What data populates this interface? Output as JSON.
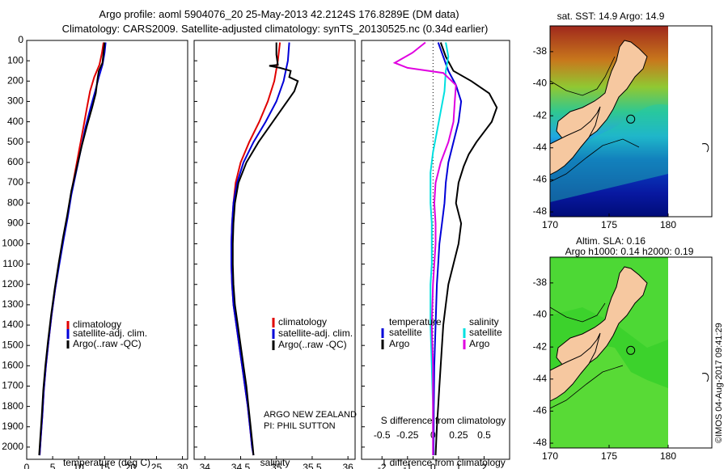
{
  "header": {
    "line1": "Argo profile: aoml 5904076_20 25-May-2013 42.2124S 176.8289E (DM data)",
    "line2": "Climatology: CARS2009. Satellite-adjusted climatology: synTS_20130525.nc (0.34d earlier)"
  },
  "colors": {
    "climatology": "#e00000",
    "satellite": "#0000d8",
    "argo": "#000000",
    "salinity_sat": "#00e0e0",
    "salinity_argo": "#e000e0",
    "land": "#f6c8a0"
  },
  "chart_data": [
    {
      "type": "line",
      "id": "temperature",
      "xlabel": "temperature (deg C)",
      "xlim": [
        0,
        31
      ],
      "xticks": [
        0,
        5,
        10,
        15,
        20,
        25,
        30
      ],
      "ylim": [
        2060,
        0
      ],
      "yticks": [
        0,
        100,
        200,
        300,
        400,
        500,
        600,
        700,
        800,
        900,
        1000,
        1100,
        1200,
        1300,
        1400,
        1500,
        1600,
        1700,
        1800,
        1900,
        2000
      ],
      "legend": [
        "climatology",
        "satellite-adj. clim.",
        "Argo(..raw -QC)"
      ],
      "series": [
        {
          "name": "climatology",
          "points": [
            [
              14.8,
              10
            ],
            [
              14.5,
              60
            ],
            [
              14.0,
              120
            ],
            [
              13.0,
              180
            ],
            [
              12.2,
              250
            ],
            [
              11.6,
              330
            ],
            [
              10.9,
              430
            ],
            [
              10.1,
              540
            ],
            [
              9.3,
              650
            ],
            [
              8.5,
              760
            ],
            [
              7.8,
              870
            ],
            [
              7.0,
              980
            ],
            [
              6.2,
              1100
            ],
            [
              5.5,
              1220
            ],
            [
              4.8,
              1350
            ],
            [
              4.2,
              1480
            ],
            [
              3.7,
              1600
            ],
            [
              3.3,
              1720
            ],
            [
              3.0,
              1850
            ],
            [
              2.7,
              1960
            ],
            [
              2.5,
              2040
            ]
          ]
        },
        {
          "name": "satellite-adj. clim.",
          "points": [
            [
              15.2,
              10
            ],
            [
              15.0,
              60
            ],
            [
              14.6,
              120
            ],
            [
              13.9,
              180
            ],
            [
              13.2,
              250
            ],
            [
              12.3,
              330
            ],
            [
              11.3,
              430
            ],
            [
              10.4,
              540
            ],
            [
              9.5,
              650
            ],
            [
              8.6,
              760
            ],
            [
              7.9,
              870
            ],
            [
              7.1,
              980
            ],
            [
              6.3,
              1100
            ],
            [
              5.5,
              1220
            ],
            [
              4.8,
              1350
            ],
            [
              4.2,
              1480
            ],
            [
              3.7,
              1600
            ],
            [
              3.3,
              1720
            ],
            [
              3.0,
              1850
            ],
            [
              2.7,
              1960
            ],
            [
              2.5,
              2040
            ]
          ]
        },
        {
          "name": "Argo(..raw -QC)",
          "points": [
            [
              15.0,
              10
            ],
            [
              14.8,
              60
            ],
            [
              14.6,
              110
            ],
            [
              13.9,
              150
            ],
            [
              13.7,
              180
            ],
            [
              13.3,
              260
            ],
            [
              12.6,
              330
            ],
            [
              11.6,
              420
            ],
            [
              10.6,
              520
            ],
            [
              9.6,
              630
            ],
            [
              8.6,
              740
            ],
            [
              7.8,
              860
            ],
            [
              7.0,
              970
            ],
            [
              6.2,
              1090
            ],
            [
              5.4,
              1220
            ],
            [
              4.7,
              1350
            ],
            [
              4.1,
              1480
            ],
            [
              3.6,
              1600
            ],
            [
              3.2,
              1720
            ],
            [
              2.9,
              1850
            ],
            [
              2.6,
              1960
            ],
            [
              2.4,
              2040
            ]
          ]
        }
      ]
    },
    {
      "type": "line",
      "id": "salinity",
      "xlabel": "salinity",
      "xlim": [
        33.85,
        36.1
      ],
      "xticks": [
        34,
        34.5,
        35,
        35.5,
        36
      ],
      "ylim": [
        2060,
        0
      ],
      "legend": [
        "climatology",
        "satellite-adj. clim.",
        "Argo(..raw -QC)"
      ],
      "annotation": [
        "ARGO NEW ZEALAND",
        "PI: PHIL SUTTON"
      ],
      "series": [
        {
          "name": "climatology",
          "points": [
            [
              35.05,
              10
            ],
            [
              35.02,
              100
            ],
            [
              34.97,
              200
            ],
            [
              34.88,
              300
            ],
            [
              34.76,
              400
            ],
            [
              34.62,
              500
            ],
            [
              34.5,
              600
            ],
            [
              34.43,
              700
            ],
            [
              34.4,
              800
            ],
            [
              34.38,
              900
            ],
            [
              34.37,
              1000
            ],
            [
              34.37,
              1100
            ],
            [
              34.38,
              1200
            ],
            [
              34.4,
              1300
            ],
            [
              34.44,
              1400
            ],
            [
              34.48,
              1500
            ],
            [
              34.52,
              1600
            ],
            [
              34.56,
              1700
            ],
            [
              34.6,
              1800
            ],
            [
              34.63,
              1900
            ],
            [
              34.66,
              2000
            ],
            [
              34.68,
              2040
            ]
          ]
        },
        {
          "name": "satellite-adj. clim.",
          "points": [
            [
              35.18,
              10
            ],
            [
              35.16,
              100
            ],
            [
              35.1,
              200
            ],
            [
              35.0,
              300
            ],
            [
              34.85,
              400
            ],
            [
              34.68,
              500
            ],
            [
              34.54,
              600
            ],
            [
              34.45,
              700
            ],
            [
              34.4,
              800
            ],
            [
              34.38,
              900
            ],
            [
              34.37,
              1000
            ],
            [
              34.37,
              1100
            ],
            [
              34.38,
              1200
            ],
            [
              34.4,
              1300
            ],
            [
              34.44,
              1400
            ],
            [
              34.48,
              1500
            ],
            [
              34.52,
              1600
            ],
            [
              34.56,
              1700
            ],
            [
              34.6,
              1800
            ],
            [
              34.63,
              1900
            ],
            [
              34.66,
              2000
            ],
            [
              34.68,
              2040
            ]
          ]
        },
        {
          "name": "Argo(..raw -QC)",
          "points": [
            [
              35.0,
              10
            ],
            [
              35.0,
              70
            ],
            [
              35.02,
              120
            ],
            [
              34.9,
              125
            ],
            [
              35.05,
              135
            ],
            [
              35.2,
              150
            ],
            [
              35.18,
              180
            ],
            [
              35.3,
              200
            ],
            [
              35.25,
              250
            ],
            [
              35.15,
              300
            ],
            [
              34.95,
              400
            ],
            [
              34.75,
              500
            ],
            [
              34.58,
              600
            ],
            [
              34.47,
              700
            ],
            [
              34.42,
              800
            ],
            [
              34.4,
              900
            ],
            [
              34.39,
              1000
            ],
            [
              34.39,
              1100
            ],
            [
              34.4,
              1200
            ],
            [
              34.42,
              1300
            ],
            [
              34.46,
              1400
            ],
            [
              34.5,
              1500
            ],
            [
              34.54,
              1600
            ],
            [
              34.58,
              1700
            ],
            [
              34.61,
              1800
            ],
            [
              34.64,
              1900
            ],
            [
              34.67,
              2000
            ],
            [
              34.68,
              2040
            ]
          ]
        }
      ]
    },
    {
      "type": "line",
      "id": "difference",
      "xlabel": "T difference from climatology",
      "xlabel_top": "S difference from climatology",
      "xlim": [
        -2.8,
        3.0
      ],
      "xticks": [
        -2,
        -1,
        0,
        1,
        2
      ],
      "xticks_s": [
        "-0.5",
        "-0.25",
        "0",
        "0.25",
        "0.5"
      ],
      "ylim": [
        2060,
        0
      ],
      "legend_t": {
        "title": "temperature",
        "items": [
          "satellite",
          "Argo"
        ]
      },
      "legend_s": {
        "title": "salinity",
        "items": [
          "satellite",
          "Argo"
        ]
      },
      "series": [
        {
          "name": "T satellite",
          "points": [
            [
              0.2,
              10
            ],
            [
              0.4,
              80
            ],
            [
              0.6,
              150
            ],
            [
              0.9,
              220
            ],
            [
              1.1,
              300
            ],
            [
              1.0,
              400
            ],
            [
              0.8,
              500
            ],
            [
              0.6,
              600
            ],
            [
              0.5,
              700
            ],
            [
              0.45,
              800
            ],
            [
              0.35,
              900
            ],
            [
              0.25,
              1000
            ],
            [
              0.2,
              1100
            ],
            [
              0.15,
              1200
            ],
            [
              0.1,
              1400
            ],
            [
              0.05,
              1600
            ],
            [
              0.03,
              1800
            ],
            [
              0.02,
              2040
            ]
          ]
        },
        {
          "name": "T Argo",
          "points": [
            [
              0.3,
              10
            ],
            [
              0.5,
              80
            ],
            [
              0.8,
              150
            ],
            [
              1.5,
              200
            ],
            [
              2.2,
              260
            ],
            [
              2.5,
              330
            ],
            [
              2.3,
              400
            ],
            [
              2.0,
              450
            ],
            [
              1.7,
              500
            ],
            [
              1.4,
              560
            ],
            [
              1.2,
              620
            ],
            [
              1.0,
              700
            ],
            [
              0.9,
              800
            ],
            [
              1.1,
              900
            ],
            [
              1.0,
              1000
            ],
            [
              0.8,
              1100
            ],
            [
              0.6,
              1200
            ],
            [
              0.5,
              1300
            ],
            [
              0.4,
              1400
            ],
            [
              0.35,
              1500
            ],
            [
              0.3,
              1600
            ],
            [
              0.25,
              1700
            ],
            [
              0.2,
              1800
            ],
            [
              0.15,
              1900
            ],
            [
              0.1,
              2040
            ]
          ]
        },
        {
          "name": "S satellite",
          "points": [
            [
              0.5,
              10
            ],
            [
              0.6,
              80
            ],
            [
              0.5,
              150
            ],
            [
              0.45,
              250
            ],
            [
              0.3,
              350
            ],
            [
              0.15,
              450
            ],
            [
              0.0,
              550
            ],
            [
              -0.1,
              650
            ],
            [
              -0.1,
              800
            ],
            [
              -0.05,
              900
            ],
            [
              -0.05,
              1000
            ],
            [
              -0.05,
              1100
            ],
            [
              -0.1,
              1200
            ],
            [
              -0.1,
              1400
            ],
            [
              -0.05,
              1600
            ],
            [
              0.0,
              1800
            ],
            [
              0.0,
              2040
            ]
          ]
        },
        {
          "name": "S Argo",
          "points": [
            [
              -0.3,
              10
            ],
            [
              -0.8,
              60
            ],
            [
              -1.5,
              110
            ],
            [
              -1.0,
              135
            ],
            [
              0.4,
              160
            ],
            [
              0.9,
              220
            ],
            [
              0.85,
              300
            ],
            [
              0.8,
              400
            ],
            [
              0.6,
              500
            ],
            [
              0.3,
              600
            ],
            [
              0.1,
              700
            ],
            [
              0.05,
              800
            ],
            [
              0.1,
              900
            ],
            [
              0.1,
              1000
            ],
            [
              0.05,
              1100
            ],
            [
              0.0,
              1200
            ],
            [
              -0.05,
              1400
            ],
            [
              0.0,
              1600
            ],
            [
              0.0,
              1800
            ],
            [
              0.0,
              2040
            ]
          ]
        }
      ]
    }
  ],
  "maps": [
    {
      "id": "sst",
      "title": "sat. SST: 14.9 Argo: 14.9",
      "xticks": [
        "170",
        "175",
        "180"
      ],
      "yticks": [
        "-38",
        "-40",
        "-42",
        "-44",
        "-46",
        "-48"
      ],
      "float_lon": 176.83,
      "float_lat": -42.21
    },
    {
      "id": "sla",
      "title1": "Altim. SLA: 0.16",
      "title2": "Argo h1000: 0.14 h2000: 0.19",
      "xticks": [
        "170",
        "175",
        "180"
      ],
      "yticks": [
        "-38",
        "-40",
        "-42",
        "-44",
        "-46",
        "-48"
      ],
      "float_lon": 176.83,
      "float_lat": -42.21
    }
  ],
  "stamp": "©IMOS 04-Aug-2017 09:41:29"
}
